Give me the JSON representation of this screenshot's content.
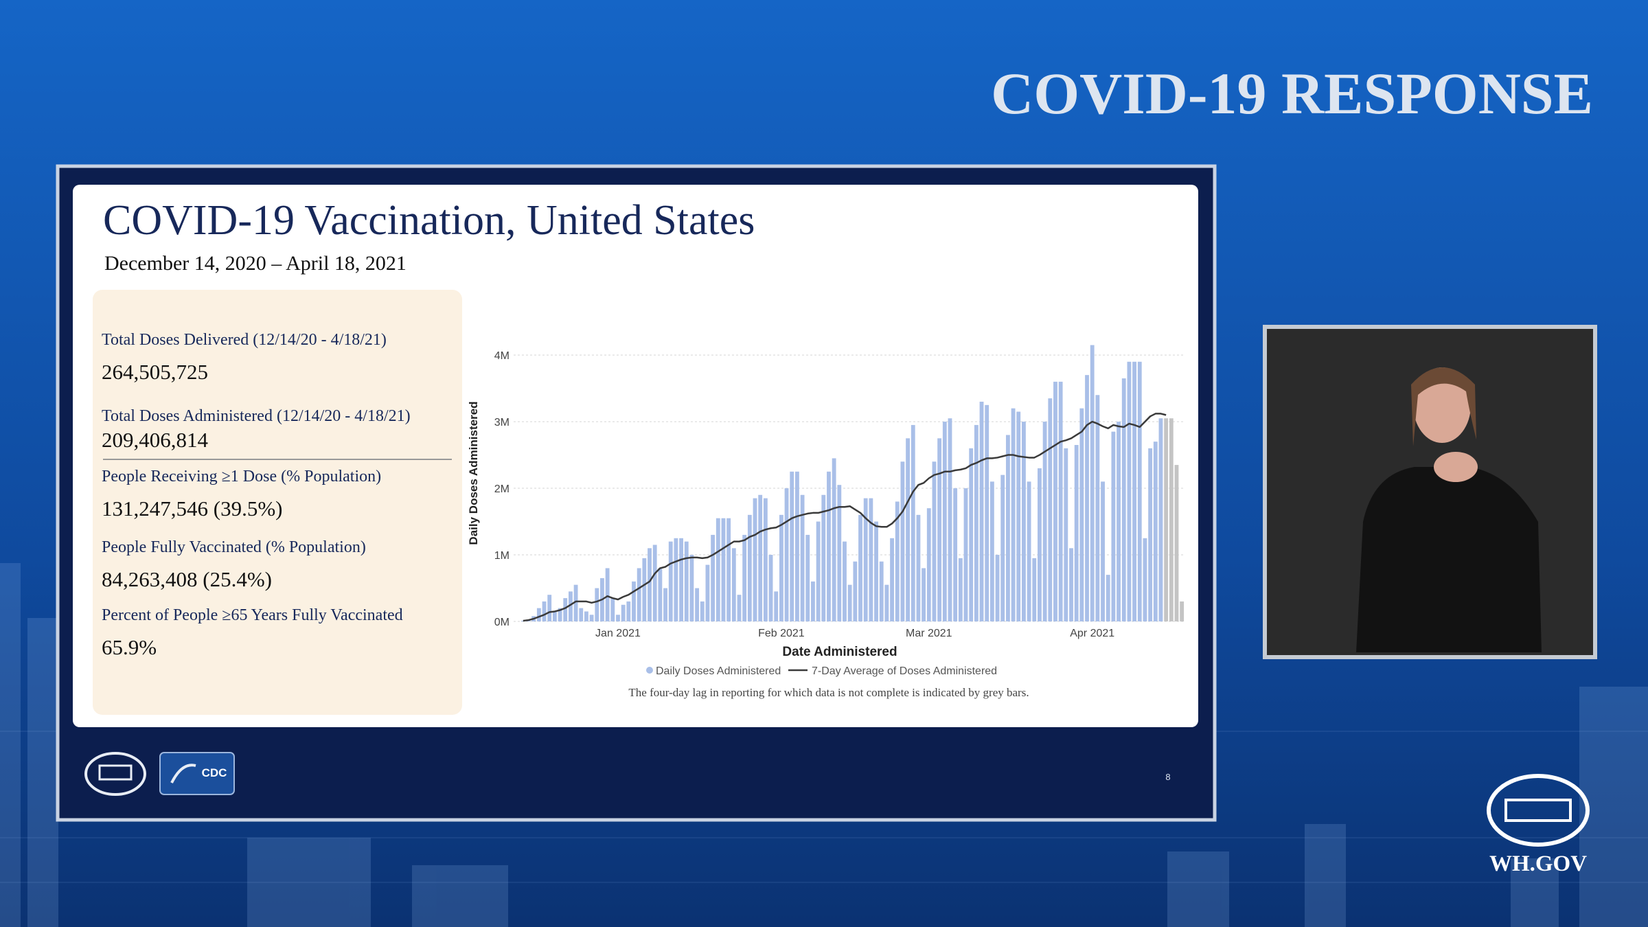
{
  "header": {
    "title": "COVID-19 RESPONSE",
    "site": "WH.GOV"
  },
  "slide": {
    "title": "COVID-19 Vaccination, United States",
    "subtitle": "December 14, 2020 – April 18, 2021",
    "stats": [
      {
        "label": "Total Doses Delivered (12/14/20 - 4/18/21)",
        "value": "264,505,725"
      },
      {
        "label": "Total Doses Administered (12/14/20 - 4/18/21)",
        "value": "209,406,814"
      },
      {
        "label": "People Receiving ≥1 Dose (% Population)",
        "value": "131,247,546 (39.5%)"
      },
      {
        "label": "People Fully Vaccinated (% Population)",
        "value": "84,263,408 (25.4%)"
      },
      {
        "label": "Percent of People ≥65 Years Fully Vaccinated",
        "value": "65.9%"
      }
    ],
    "logo": "CDC",
    "page": 8
  },
  "chart_data": {
    "type": "bar",
    "x_label": "Date Administered",
    "y_label": "Daily Doses Administered",
    "caption": "The four-day lag in reporting for which data is not complete is indicated by grey bars.",
    "categories": [
      null,
      null,
      null,
      null,
      null,
      null,
      null,
      null,
      null,
      null,
      null,
      null,
      null,
      null,
      null,
      null,
      null,
      null,
      "Jan 2021",
      null,
      null,
      null,
      null,
      null,
      null,
      null,
      null,
      null,
      null,
      null,
      null,
      null,
      null,
      null,
      null,
      null,
      null,
      null,
      null,
      null,
      null,
      null,
      null,
      null,
      null,
      null,
      null,
      null,
      null,
      "Feb 2021",
      null,
      null,
      null,
      null,
      null,
      null,
      null,
      null,
      null,
      null,
      null,
      null,
      null,
      null,
      null,
      null,
      null,
      null,
      null,
      null,
      null,
      null,
      null,
      null,
      null,
      null,
      null,
      "Mar 2021",
      null,
      null,
      null,
      null,
      null,
      null,
      null,
      null,
      null,
      null,
      null,
      null,
      null,
      null,
      null,
      null,
      null,
      null,
      null,
      null,
      null,
      null,
      null,
      null,
      null,
      null,
      null,
      null,
      null,
      null,
      "Apr 2021",
      null,
      null,
      null,
      null,
      null,
      null,
      null,
      null,
      null,
      null,
      null,
      null,
      null,
      null,
      null,
      null,
      null
    ],
    "ylim": [
      0,
      4.3
    ],
    "yticks": [
      {
        "value": 0,
        "label": "0M"
      },
      {
        "value": 1,
        "label": "1M"
      },
      {
        "value": 2,
        "label": "2M"
      },
      {
        "value": 3,
        "label": "3M"
      },
      {
        "value": 4,
        "label": "4M"
      }
    ],
    "grid": true,
    "series": [
      {
        "name": "Daily Doses Administered",
        "type": "bar",
        "color": "#a9bfe8",
        "values": [
          0.01,
          0.03,
          0.08,
          0.2,
          0.3,
          0.4,
          0.15,
          0.2,
          0.35,
          0.45,
          0.55,
          0.2,
          0.15,
          0.1,
          0.5,
          0.65,
          0.8,
          0.35,
          0.1,
          0.25,
          0.3,
          0.6,
          0.8,
          0.95,
          1.1,
          1.15,
          0.8,
          0.5,
          1.2,
          1.25,
          1.25,
          1.2,
          1.0,
          0.5,
          0.3,
          0.85,
          1.3,
          1.55,
          1.55,
          1.55,
          1.1,
          0.4,
          1.3,
          1.6,
          1.85,
          1.9,
          1.85,
          1.0,
          0.45,
          1.6,
          2.0,
          2.25,
          2.25,
          1.9,
          1.3,
          0.6,
          1.5,
          1.9,
          2.25,
          2.45,
          2.05,
          1.2,
          0.55,
          0.9,
          1.6,
          1.85,
          1.85,
          1.5,
          0.9,
          0.55,
          1.25,
          1.8,
          2.4,
          2.75,
          2.95,
          1.6,
          0.8,
          1.7,
          2.4,
          2.75,
          3.0,
          3.05,
          2.0,
          0.95,
          2.0,
          2.6,
          2.95,
          3.3,
          3.25,
          2.1,
          1.0,
          2.2,
          2.8,
          3.2,
          3.15,
          3.0,
          2.1,
          0.95,
          2.3,
          3.0,
          3.35,
          3.6,
          3.6,
          2.6,
          1.1,
          2.65,
          3.2,
          3.7,
          4.15,
          3.4,
          2.1,
          0.7,
          2.85,
          3.0,
          3.65,
          3.9,
          3.9,
          3.9,
          1.25,
          2.6,
          2.7,
          3.05,
          3.05,
          3.05,
          2.35,
          0.3
        ],
        "colors": [
          "#a9bfe8",
          "#a9bfe8",
          "#a9bfe8",
          "#a9bfe8",
          "#a9bfe8",
          "#a9bfe8",
          "#a9bfe8",
          "#a9bfe8",
          "#a9bfe8",
          "#a9bfe8",
          "#a9bfe8",
          "#a9bfe8",
          "#a9bfe8",
          "#a9bfe8",
          "#a9bfe8",
          "#a9bfe8",
          "#a9bfe8",
          "#a9bfe8",
          "#a9bfe8",
          "#a9bfe8",
          "#a9bfe8",
          "#a9bfe8",
          "#a9bfe8",
          "#a9bfe8",
          "#a9bfe8",
          "#a9bfe8",
          "#a9bfe8",
          "#a9bfe8",
          "#a9bfe8",
          "#a9bfe8",
          "#a9bfe8",
          "#a9bfe8",
          "#a9bfe8",
          "#a9bfe8",
          "#a9bfe8",
          "#a9bfe8",
          "#a9bfe8",
          "#a9bfe8",
          "#a9bfe8",
          "#a9bfe8",
          "#a9bfe8",
          "#a9bfe8",
          "#a9bfe8",
          "#a9bfe8",
          "#a9bfe8",
          "#a9bfe8",
          "#a9bfe8",
          "#a9bfe8",
          "#a9bfe8",
          "#a9bfe8",
          "#a9bfe8",
          "#a9bfe8",
          "#a9bfe8",
          "#a9bfe8",
          "#a9bfe8",
          "#a9bfe8",
          "#a9bfe8",
          "#a9bfe8",
          "#a9bfe8",
          "#a9bfe8",
          "#a9bfe8",
          "#a9bfe8",
          "#a9bfe8",
          "#a9bfe8",
          "#a9bfe8",
          "#a9bfe8",
          "#a9bfe8",
          "#a9bfe8",
          "#a9bfe8",
          "#a9bfe8",
          "#a9bfe8",
          "#a9bfe8",
          "#a9bfe8",
          "#a9bfe8",
          "#a9bfe8",
          "#a9bfe8",
          "#a9bfe8",
          "#a9bfe8",
          "#a9bfe8",
          "#a9bfe8",
          "#a9bfe8",
          "#a9bfe8",
          "#a9bfe8",
          "#a9bfe8",
          "#a9bfe8",
          "#a9bfe8",
          "#a9bfe8",
          "#a9bfe8",
          "#a9bfe8",
          "#a9bfe8",
          "#a9bfe8",
          "#a9bfe8",
          "#a9bfe8",
          "#a9bfe8",
          "#a9bfe8",
          "#a9bfe8",
          "#a9bfe8",
          "#a9bfe8",
          "#a9bfe8",
          "#a9bfe8",
          "#a9bfe8",
          "#a9bfe8",
          "#a9bfe8",
          "#a9bfe8",
          "#a9bfe8",
          "#a9bfe8",
          "#a9bfe8",
          "#a9bfe8",
          "#a9bfe8",
          "#a9bfe8",
          "#a9bfe8",
          "#a9bfe8",
          "#a9bfe8",
          "#a9bfe8",
          "#a9bfe8",
          "#a9bfe8",
          "#a9bfe8",
          "#a9bfe8",
          "#a9bfe8",
          "#a9bfe8",
          "#a9bfe8",
          "#a9bfe8",
          "#c4c4c4",
          "#c4c4c4",
          "#c4c4c4",
          "#c4c4c4"
        ]
      },
      {
        "name": "7-Day Average of Doses Administered",
        "type": "line",
        "color": "#3a3a3a",
        "values": [
          0.01,
          0.02,
          0.04,
          0.07,
          0.1,
          0.14,
          0.15,
          0.17,
          0.2,
          0.25,
          0.3,
          0.3,
          0.3,
          0.28,
          0.3,
          0.33,
          0.38,
          0.35,
          0.33,
          0.37,
          0.4,
          0.45,
          0.5,
          0.55,
          0.6,
          0.72,
          0.8,
          0.82,
          0.87,
          0.9,
          0.93,
          0.95,
          0.96,
          0.96,
          0.95,
          0.96,
          1.0,
          1.05,
          1.1,
          1.15,
          1.2,
          1.2,
          1.22,
          1.27,
          1.3,
          1.35,
          1.38,
          1.4,
          1.41,
          1.45,
          1.5,
          1.55,
          1.58,
          1.6,
          1.62,
          1.63,
          1.63,
          1.65,
          1.67,
          1.7,
          1.72,
          1.72,
          1.73,
          1.68,
          1.63,
          1.55,
          1.48,
          1.43,
          1.42,
          1.42,
          1.47,
          1.55,
          1.65,
          1.8,
          1.95,
          2.05,
          2.08,
          2.15,
          2.2,
          2.22,
          2.25,
          2.25,
          2.27,
          2.28,
          2.3,
          2.35,
          2.38,
          2.42,
          2.45,
          2.45,
          2.46,
          2.48,
          2.5,
          2.5,
          2.48,
          2.47,
          2.46,
          2.46,
          2.5,
          2.55,
          2.6,
          2.65,
          2.7,
          2.72,
          2.75,
          2.8,
          2.85,
          2.95,
          3.0,
          2.97,
          2.93,
          2.9,
          2.95,
          2.93,
          2.92,
          2.97,
          2.95,
          2.92,
          3.0,
          3.08,
          3.12,
          3.12,
          3.1,
          null,
          null,
          null
        ]
      }
    ]
  }
}
